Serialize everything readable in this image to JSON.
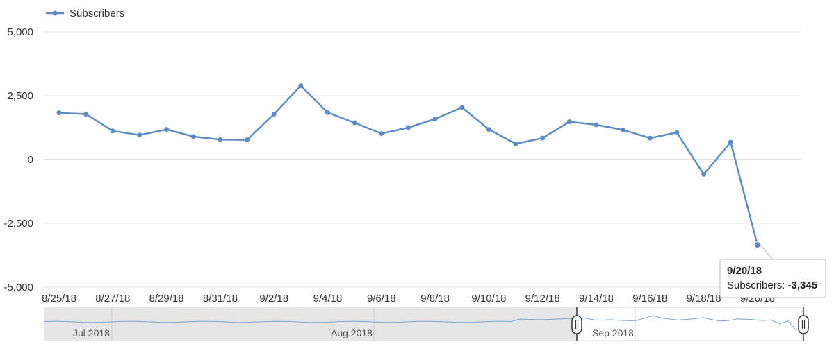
{
  "chart_data": {
    "type": "line",
    "series": [
      {
        "name": "Subscribers",
        "x": [
          "8/25/18",
          "8/26/18",
          "8/27/18",
          "8/28/18",
          "8/29/18",
          "8/30/18",
          "8/31/18",
          "9/1/18",
          "9/2/18",
          "9/3/18",
          "9/4/18",
          "9/5/18",
          "9/6/18",
          "9/7/18",
          "9/8/18",
          "9/9/18",
          "9/10/18",
          "9/11/18",
          "9/12/18",
          "9/13/18",
          "9/14/18",
          "9/15/18",
          "9/16/18",
          "9/17/18",
          "9/18/18",
          "9/19/18",
          "9/20/18"
        ],
        "values": [
          1830,
          1780,
          1120,
          960,
          1180,
          900,
          780,
          770,
          1780,
          2890,
          1840,
          1440,
          1020,
          1250,
          1590,
          2040,
          1180,
          620,
          840,
          1480,
          1360,
          1160,
          840,
          1060,
          -580,
          680,
          -3345
        ]
      }
    ],
    "x_tick_labels": [
      "8/25/18",
      "8/27/18",
      "8/29/18",
      "8/31/18",
      "9/2/18",
      "9/4/18",
      "9/6/18",
      "9/8/18",
      "9/10/18",
      "9/12/18",
      "9/14/18",
      "9/16/18",
      "9/18/18",
      "9/20/18"
    ],
    "y_ticks": [
      5000,
      2500,
      0,
      -2500,
      -5000
    ],
    "y_tick_labels": [
      "5,000",
      "2,500",
      "0",
      "-2,500",
      "-5,000"
    ],
    "ylim": [
      -5000,
      5000
    ],
    "grid": true,
    "legend": "top-left",
    "colors": {
      "series": "#5b8cc8",
      "grid": "#e6e6e6",
      "zero_line": "#c0c0c0"
    },
    "tooltip": {
      "date": "9/20/18",
      "label": "Subscribers: ",
      "value": "-3,345"
    },
    "navigator": {
      "labels": [
        "Jul 2018",
        "Aug 2018",
        "Sep 2018"
      ]
    }
  }
}
